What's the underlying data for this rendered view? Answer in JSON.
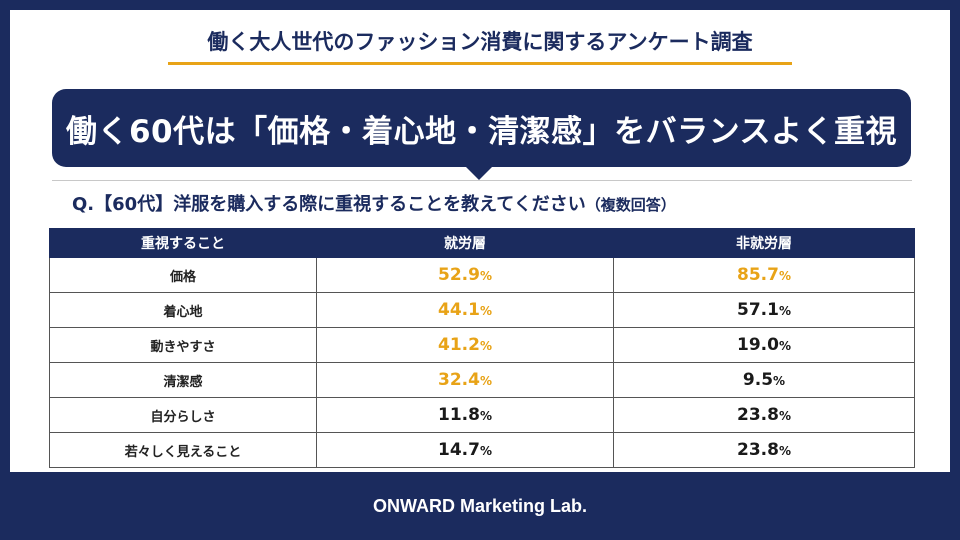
{
  "title": "働く大人世代のファッション消費に関するアンケート調査",
  "headline": "働く60代は「価格・着心地・清潔感」をバランスよく重視",
  "question": {
    "main": "Q.【60代】洋服を購入する際に重視することを教えてください",
    "note": "（複数回答）"
  },
  "table": {
    "headers": [
      "重視すること",
      "就労層",
      "非就労層"
    ],
    "percent_sign": "%",
    "highlight_color": "#e8a317",
    "rows": [
      {
        "label": "価格",
        "employed": "52.9",
        "nonemployed": "85.7",
        "employed_highlight": true,
        "nonemployed_highlight": true
      },
      {
        "label": "着心地",
        "employed": "44.1",
        "nonemployed": "57.1",
        "employed_highlight": true,
        "nonemployed_highlight": false
      },
      {
        "label": "動きやすさ",
        "employed": "41.2",
        "nonemployed": "19.0",
        "employed_highlight": true,
        "nonemployed_highlight": false
      },
      {
        "label": "清潔感",
        "employed": "32.4",
        "nonemployed": "9.5",
        "employed_highlight": true,
        "nonemployed_highlight": false
      },
      {
        "label": "自分らしさ",
        "employed": "11.8",
        "nonemployed": "23.8",
        "employed_highlight": false,
        "nonemployed_highlight": false
      },
      {
        "label": "若々しく見えること",
        "employed": "14.7",
        "nonemployed": "23.8",
        "employed_highlight": false,
        "nonemployed_highlight": false
      }
    ]
  },
  "footer": "ONWARD Marketing Lab."
}
